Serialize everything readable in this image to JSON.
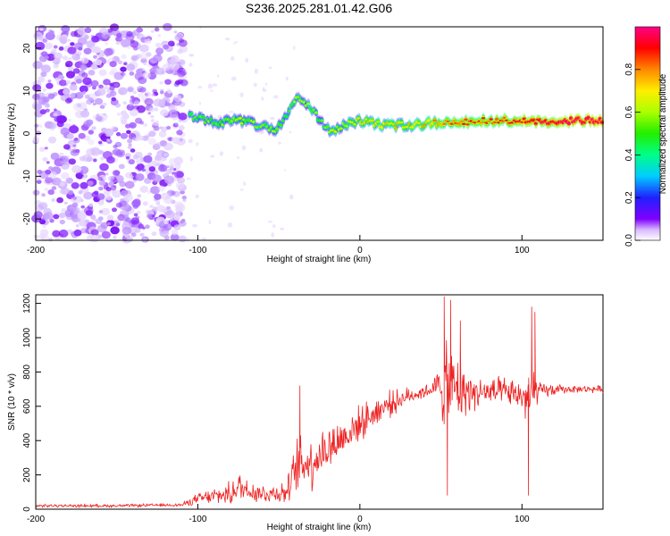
{
  "title": "S236.2025.281.01.42.G06",
  "chart_data": [
    {
      "type": "heatmap",
      "xlabel": "Height of straight line (km)",
      "ylabel": "Frequency (Hz)",
      "xlim": [
        -200,
        150
      ],
      "ylim": [
        -25,
        25
      ],
      "xticks": [
        "-200",
        "-100",
        "0",
        "100"
      ],
      "yticks": [
        "20",
        "10",
        "0",
        "-10",
        "-20"
      ],
      "colorbar": {
        "label": "Normalized spectral amplitude",
        "range": [
          0,
          1
        ],
        "ticks": [
          "0.0",
          "0.2",
          "0.4",
          "0.6",
          "0.8"
        ]
      },
      "signal_track": [
        {
          "x": -105,
          "freq": 4,
          "amp": 0.4
        },
        {
          "x": -90,
          "freq": 2.5,
          "amp": 0.45
        },
        {
          "x": -75,
          "freq": 3,
          "amp": 0.5
        },
        {
          "x": -62,
          "freq": 2,
          "amp": 0.45
        },
        {
          "x": -52,
          "freq": 0.5,
          "amp": 0.5
        },
        {
          "x": -45,
          "freq": 4,
          "amp": 0.4
        },
        {
          "x": -38,
          "freq": 9,
          "amp": 0.5
        },
        {
          "x": -30,
          "freq": 6,
          "amp": 0.45
        },
        {
          "x": -22,
          "freq": 2,
          "amp": 0.4
        },
        {
          "x": -17,
          "freq": 0.5,
          "amp": 0.55
        },
        {
          "x": -10,
          "freq": 2,
          "amp": 0.5
        },
        {
          "x": 0,
          "freq": 3,
          "amp": 0.6
        },
        {
          "x": 15,
          "freq": 2,
          "amp": 0.6
        },
        {
          "x": 30,
          "freq": 2,
          "amp": 0.6
        },
        {
          "x": 45,
          "freq": 2.5,
          "amp": 0.65
        },
        {
          "x": 60,
          "freq": 2.5,
          "amp": 0.75
        },
        {
          "x": 80,
          "freq": 3,
          "amp": 0.75
        },
        {
          "x": 95,
          "freq": 3,
          "amp": 0.8
        },
        {
          "x": 110,
          "freq": 3,
          "amp": 0.85
        },
        {
          "x": 130,
          "freq": 3,
          "amp": 0.9
        },
        {
          "x": 150,
          "freq": 3,
          "amp": 0.9
        }
      ]
    },
    {
      "type": "line",
      "xlabel": "Height of straight line (km)",
      "ylabel": "SNR (10 * v/v)",
      "xlim": [
        -200,
        150
      ],
      "ylim": [
        0,
        1250
      ],
      "xticks": [
        "-200",
        "-100",
        "0",
        "100"
      ],
      "yticks": [
        "0",
        "200",
        "400",
        "600",
        "800",
        "1000",
        "1200"
      ],
      "series": [
        {
          "name": "SNR",
          "color": "#ee2222",
          "envelope": [
            {
              "x": -200,
              "mean": 20,
              "spread": 10
            },
            {
              "x": -150,
              "mean": 20,
              "spread": 10
            },
            {
              "x": -110,
              "mean": 25,
              "spread": 12
            },
            {
              "x": -100,
              "mean": 60,
              "spread": 40
            },
            {
              "x": -80,
              "mean": 90,
              "spread": 80
            },
            {
              "x": -75,
              "mean": 130,
              "spread": 110
            },
            {
              "x": -60,
              "mean": 90,
              "spread": 70
            },
            {
              "x": -45,
              "mean": 100,
              "spread": 80
            },
            {
              "x": -38,
              "mean": 260,
              "spread": 220
            },
            {
              "x": -30,
              "mean": 280,
              "spread": 200
            },
            {
              "x": -22,
              "mean": 340,
              "spread": 180
            },
            {
              "x": -10,
              "mean": 420,
              "spread": 150
            },
            {
              "x": 0,
              "mean": 500,
              "spread": 120
            },
            {
              "x": 15,
              "mean": 600,
              "spread": 100
            },
            {
              "x": 30,
              "mean": 660,
              "spread": 60
            },
            {
              "x": 45,
              "mean": 700,
              "spread": 50
            },
            {
              "x": 52,
              "mean": 720,
              "spread": 300
            },
            {
              "x": 60,
              "mean": 700,
              "spread": 250
            },
            {
              "x": 70,
              "mean": 680,
              "spread": 120
            },
            {
              "x": 90,
              "mean": 680,
              "spread": 100
            },
            {
              "x": 100,
              "mean": 660,
              "spread": 100
            },
            {
              "x": 105,
              "mean": 650,
              "spread": 350
            },
            {
              "x": 110,
              "mean": 690,
              "spread": 60
            },
            {
              "x": 130,
              "mean": 700,
              "spread": 25
            },
            {
              "x": 150,
              "mean": 700,
              "spread": 25
            }
          ],
          "spikes": [
            {
              "x": -37,
              "value": 720
            },
            {
              "x": 52,
              "value": 1240
            },
            {
              "x": 54,
              "value": 80
            },
            {
              "x": 56,
              "value": 1220
            },
            {
              "x": 62,
              "value": 1100
            },
            {
              "x": 104,
              "value": 80
            },
            {
              "x": 106,
              "value": 1180
            },
            {
              "x": 108,
              "value": 1150
            }
          ]
        }
      ]
    }
  ],
  "colors": {
    "axis": "#000000",
    "line": "#ee2222"
  }
}
